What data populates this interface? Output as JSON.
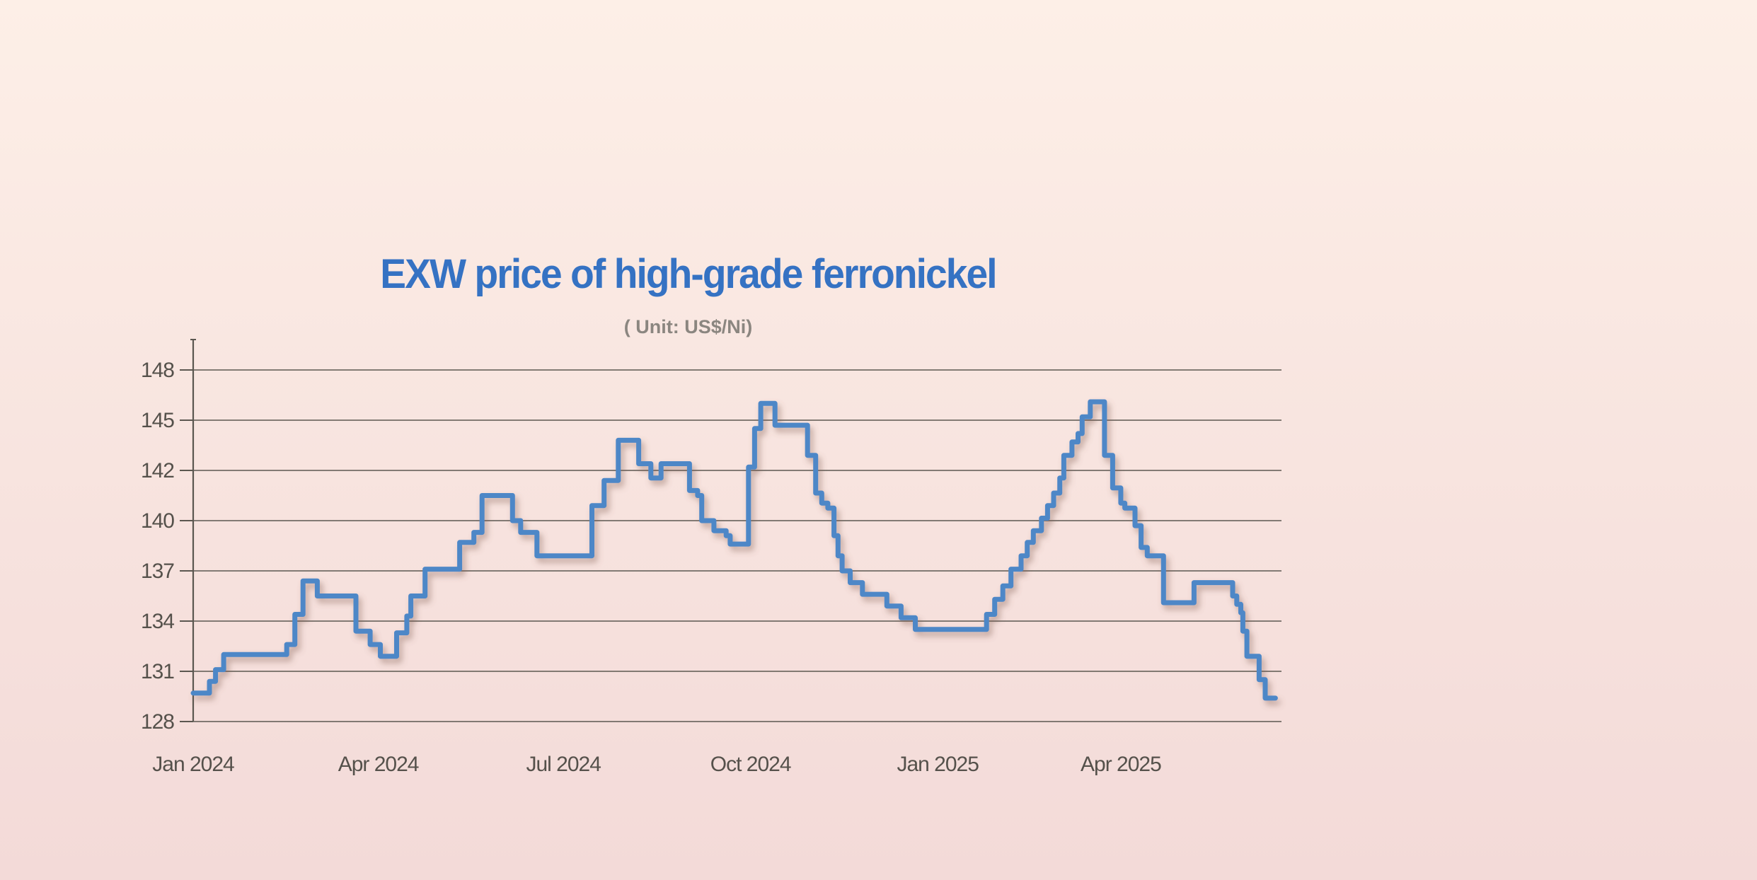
{
  "title": "EXW price of high-grade ferronickel",
  "subtitle": "( Unit: US$/Ni)",
  "colors": {
    "background_top": "#fdefe7",
    "background_bottom": "#f3dad8",
    "title": "#3572c3",
    "subtitle": "#8b8680",
    "line": "#4d87c7",
    "line_shadow": "#7a564a",
    "axis": "#5b5750",
    "tick_label": "#55514b"
  },
  "chart_data": {
    "type": "line",
    "style": "step-after",
    "title": "EXW price of high-grade ferronickel",
    "unit_label": "( Unit: US$/Ni)",
    "xlabel": "",
    "ylabel": "",
    "grid": true,
    "legend": "none",
    "x_domain": [
      "2024-01-01",
      "2025-06-19"
    ],
    "x_ticks": [
      {
        "date": "2024-01-01",
        "label": "Jan 2024"
      },
      {
        "date": "2024-04-01",
        "label": "Apr 2024"
      },
      {
        "date": "2024-07-01",
        "label": "Jul 2024"
      },
      {
        "date": "2024-10-01",
        "label": "Oct 2024"
      },
      {
        "date": "2025-01-01",
        "label": "Jan 2025"
      },
      {
        "date": "2025-04-01",
        "label": "Apr 2025"
      }
    ],
    "y_ticks": [
      {
        "value": 148,
        "label": "148"
      },
      {
        "value": 145,
        "label": "145"
      },
      {
        "value": 142,
        "label": "142"
      },
      {
        "value": 140,
        "label": "140"
      },
      {
        "value": 137,
        "label": "137"
      },
      {
        "value": 134,
        "label": "134"
      },
      {
        "value": 131,
        "label": "131"
      },
      {
        "value": 128,
        "label": "128"
      }
    ],
    "y_axis_note": "tick labels are evenly spaced although numeric steps vary (3,3,2,3,3,3)",
    "series": [
      {
        "name": "EXW price of high-grade ferronickel (US$/Ni)",
        "points": [
          [
            "2024-01-01",
            129.7
          ],
          [
            "2024-01-09",
            130.4
          ],
          [
            "2024-01-12",
            131.1
          ],
          [
            "2024-01-16",
            132.0
          ],
          [
            "2024-02-16",
            132.6
          ],
          [
            "2024-02-20",
            134.4
          ],
          [
            "2024-02-24",
            136.4
          ],
          [
            "2024-03-02",
            135.5
          ],
          [
            "2024-03-21",
            133.4
          ],
          [
            "2024-03-28",
            132.6
          ],
          [
            "2024-04-02",
            131.9
          ],
          [
            "2024-04-10",
            133.3
          ],
          [
            "2024-04-15",
            134.3
          ],
          [
            "2024-04-17",
            135.5
          ],
          [
            "2024-04-24",
            137.1
          ],
          [
            "2024-05-11",
            138.7
          ],
          [
            "2024-05-18",
            139.3
          ],
          [
            "2024-05-22",
            141.0
          ],
          [
            "2024-06-06",
            140.0
          ],
          [
            "2024-06-10",
            139.3
          ],
          [
            "2024-06-18",
            137.9
          ],
          [
            "2024-07-15",
            140.6
          ],
          [
            "2024-07-21",
            141.6
          ],
          [
            "2024-07-28",
            143.8
          ],
          [
            "2024-08-07",
            142.4
          ],
          [
            "2024-08-13",
            141.7
          ],
          [
            "2024-08-18",
            142.4
          ],
          [
            "2024-09-01",
            141.2
          ],
          [
            "2024-09-05",
            141.0
          ],
          [
            "2024-09-07",
            140.0
          ],
          [
            "2024-09-13",
            139.4
          ],
          [
            "2024-09-19",
            139.1
          ],
          [
            "2024-09-21",
            138.6
          ],
          [
            "2024-09-30",
            142.2
          ],
          [
            "2024-10-03",
            144.5
          ],
          [
            "2024-10-06",
            146.0
          ],
          [
            "2024-10-13",
            144.7
          ],
          [
            "2024-10-29",
            142.9
          ],
          [
            "2024-11-02",
            141.1
          ],
          [
            "2024-11-05",
            140.7
          ],
          [
            "2024-11-08",
            140.5
          ],
          [
            "2024-11-11",
            139.1
          ],
          [
            "2024-11-13",
            137.9
          ],
          [
            "2024-11-15",
            137.0
          ],
          [
            "2024-11-19",
            136.3
          ],
          [
            "2024-11-25",
            135.6
          ],
          [
            "2024-12-07",
            134.9
          ],
          [
            "2024-12-14",
            134.2
          ],
          [
            "2024-12-21",
            133.5
          ],
          [
            "2025-01-25",
            134.4
          ],
          [
            "2025-01-29",
            135.3
          ],
          [
            "2025-02-02",
            136.1
          ],
          [
            "2025-02-06",
            137.1
          ],
          [
            "2025-02-11",
            137.9
          ],
          [
            "2025-02-14",
            138.7
          ],
          [
            "2025-02-17",
            139.4
          ],
          [
            "2025-02-21",
            140.1
          ],
          [
            "2025-02-24",
            140.6
          ],
          [
            "2025-02-27",
            141.1
          ],
          [
            "2025-03-02",
            141.7
          ],
          [
            "2025-03-04",
            142.9
          ],
          [
            "2025-03-08",
            143.7
          ],
          [
            "2025-03-11",
            144.2
          ],
          [
            "2025-03-13",
            145.2
          ],
          [
            "2025-03-17",
            146.1
          ],
          [
            "2025-03-24",
            142.9
          ],
          [
            "2025-03-28",
            141.3
          ],
          [
            "2025-04-01",
            140.7
          ],
          [
            "2025-04-03",
            140.5
          ],
          [
            "2025-04-08",
            139.7
          ],
          [
            "2025-04-11",
            138.4
          ],
          [
            "2025-04-14",
            137.9
          ],
          [
            "2025-04-22",
            135.1
          ],
          [
            "2025-05-07",
            136.3
          ],
          [
            "2025-05-26",
            135.5
          ],
          [
            "2025-05-28",
            135.0
          ],
          [
            "2025-05-30",
            134.5
          ],
          [
            "2025-05-31",
            133.4
          ],
          [
            "2025-06-02",
            131.9
          ],
          [
            "2025-06-08",
            130.5
          ],
          [
            "2025-06-11",
            129.4
          ],
          [
            "2025-06-16",
            129.4
          ]
        ]
      }
    ]
  }
}
